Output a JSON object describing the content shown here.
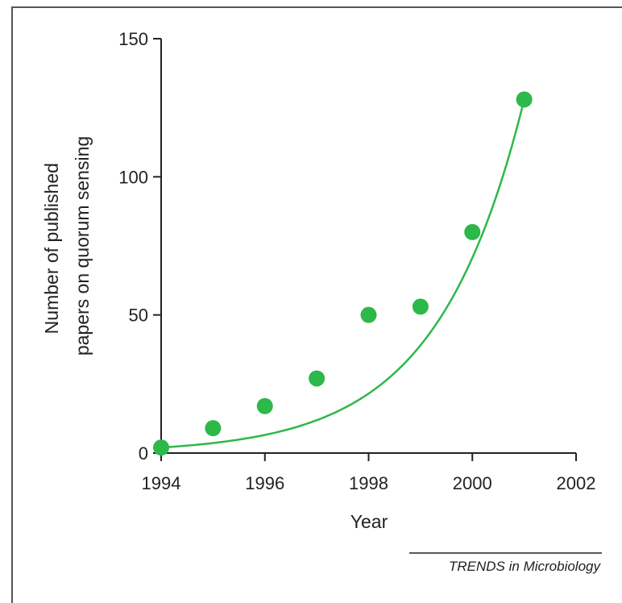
{
  "chart_data": {
    "type": "scatter",
    "title": "",
    "xlabel": "Year",
    "ylabel_lines": [
      "Number of published",
      "papers on quorum sensing"
    ],
    "xlim": [
      1994,
      2002
    ],
    "ylim": [
      0,
      150
    ],
    "xticks": [
      1994,
      1996,
      1998,
      2000,
      2002
    ],
    "yticks": [
      0,
      50,
      100,
      150
    ],
    "grid": false,
    "series": [
      {
        "x": [
          1994,
          1995,
          1996,
          1997,
          1998,
          1999,
          2000,
          2001
        ],
        "values": [
          2,
          9,
          17,
          27,
          50,
          53,
          80,
          128
        ],
        "color": "#2db84a",
        "fit": "exponential"
      }
    ]
  },
  "credit": "TRENDS in Microbiology"
}
